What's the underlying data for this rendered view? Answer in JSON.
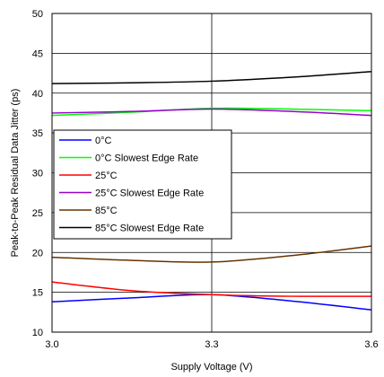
{
  "chart_data": {
    "type": "line",
    "xlabel": "Supply Voltage (V)",
    "ylabel": "Peak-to-Peak Residual Data Jitter (ps)",
    "xlim": [
      3.0,
      3.6
    ],
    "ylim": [
      10,
      50
    ],
    "x_ticks": [
      3.0,
      3.3,
      3.6
    ],
    "x_tick_labels": [
      "3.0",
      "3.3",
      "3.6"
    ],
    "y_ticks": [
      10,
      15,
      20,
      25,
      30,
      35,
      40,
      45,
      50
    ],
    "y_tick_labels": [
      "10",
      "15",
      "20",
      "25",
      "30",
      "35",
      "40",
      "45",
      "50"
    ],
    "grid": true,
    "legend_position": "center-left",
    "series": [
      {
        "name": "0°C",
        "color": "#0000ff",
        "x": [
          3.0,
          3.15,
          3.3,
          3.45,
          3.6
        ],
        "y": [
          13.8,
          14.3,
          14.7,
          13.9,
          12.8
        ]
      },
      {
        "name": "0°C Slowest Edge Rate",
        "color": "#00ff00",
        "x": [
          3.0,
          3.15,
          3.3,
          3.45,
          3.6
        ],
        "y": [
          37.2,
          37.6,
          38.1,
          38.0,
          37.8
        ]
      },
      {
        "name": "25°C",
        "color": "#ff0000",
        "x": [
          3.0,
          3.15,
          3.3,
          3.45,
          3.6
        ],
        "y": [
          16.3,
          15.2,
          14.7,
          14.5,
          14.5
        ]
      },
      {
        "name": "25°C Slowest Edge Rate",
        "color": "#9900cc",
        "x": [
          3.0,
          3.15,
          3.3,
          3.45,
          3.6
        ],
        "y": [
          37.5,
          37.7,
          38.0,
          37.7,
          37.2
        ]
      },
      {
        "name": "85°C",
        "color": "#663300",
        "x": [
          3.0,
          3.15,
          3.3,
          3.45,
          3.6
        ],
        "y": [
          19.4,
          19.0,
          18.8,
          19.6,
          20.8
        ]
      },
      {
        "name": "85°C Slowest Edge Rate",
        "color": "#000000",
        "x": [
          3.0,
          3.15,
          3.3,
          3.45,
          3.6
        ],
        "y": [
          41.2,
          41.3,
          41.5,
          42.0,
          42.7
        ]
      }
    ]
  }
}
